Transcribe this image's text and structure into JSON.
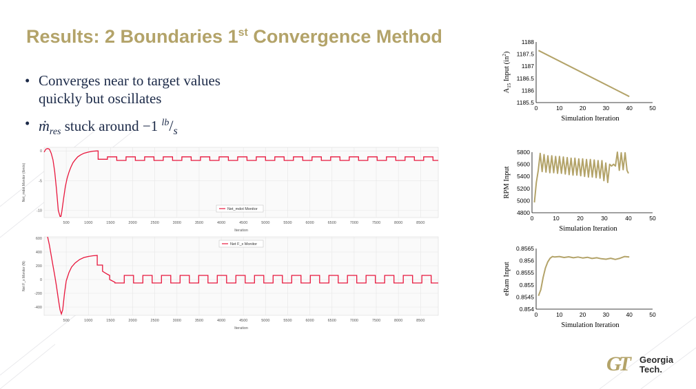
{
  "slide": {
    "title_main": "Results: 2 Boundaries 1",
    "title_sup": "st",
    "title_rest": " Convergence Method",
    "bullets": [
      {
        "line1": "Converges near to target values",
        "line2": "quickly but oscillates"
      },
      {
        "symbol": "ṁ",
        "subscript": "res",
        "text": " stuck around −1 ",
        "unit_top": "lb",
        "unit_bottom": "s"
      }
    ],
    "logo": {
      "line1": "Georgia",
      "line2": "Tech."
    },
    "colors": {
      "gold": "#B3A369",
      "navy": "#1c2a48",
      "red": "#e8163c"
    }
  },
  "chart_data": [
    {
      "type": "line",
      "ylabel": "Net_mdot Monitor (lbm/s)",
      "xlabel": "Iteration",
      "legend": "Net_mdot Monitor",
      "legend_position": "bottom-center",
      "xlim": [
        0,
        8900
      ],
      "ylim": [
        -11.2,
        0.6
      ],
      "yticks": [
        0,
        -5,
        -10
      ],
      "xticks": [
        500,
        1000,
        1500,
        2000,
        2500,
        3000,
        3500,
        4000,
        4500,
        5000,
        5500,
        6000,
        6500,
        7000,
        7500,
        8000,
        8500
      ],
      "x": [
        0,
        40,
        80,
        120,
        160,
        200,
        240,
        280,
        320,
        360,
        380,
        400,
        440,
        480,
        520,
        560,
        600,
        650,
        700,
        760,
        820,
        900,
        1000,
        1100,
        1200
      ],
      "y": [
        -0.2,
        0.3,
        0.4,
        0.3,
        -0.4,
        -1.5,
        -3.5,
        -6.5,
        -10.0,
        -11.0,
        -11.0,
        -10.2,
        -8.0,
        -6.0,
        -4.6,
        -3.6,
        -2.8,
        -2.0,
        -1.5,
        -1.0,
        -0.7,
        -0.4,
        -0.2,
        -0.05,
        0.0
      ],
      "square_wave": {
        "start": 1220,
        "end": 8900,
        "period": 420,
        "high": -1.0,
        "low": -1.6,
        "initial": -1.4
      },
      "grid": true
    },
    {
      "type": "line",
      "ylabel": "Net F_x Monitor (N)",
      "xlabel": "Iteration",
      "legend": "Net F_x Monitor",
      "legend_position": "top-center",
      "xlim": [
        0,
        8900
      ],
      "ylim": [
        -520,
        620
      ],
      "yticks": [
        600,
        400,
        200,
        0,
        -200,
        -400
      ],
      "xticks": [
        500,
        1000,
        1500,
        2000,
        2500,
        3000,
        3500,
        4000,
        4500,
        5000,
        5500,
        6000,
        6500,
        7000,
        7500,
        8000,
        8500
      ],
      "x": [
        80,
        120,
        160,
        200,
        240,
        280,
        320,
        360,
        390,
        420,
        460,
        500,
        560,
        620,
        700,
        800,
        900,
        1000,
        1100,
        1200
      ],
      "y": [
        620,
        500,
        350,
        200,
        60,
        -100,
        -280,
        -440,
        -500,
        -440,
        -200,
        -20,
        100,
        180,
        240,
        290,
        320,
        335,
        345,
        350
      ],
      "decay": [
        {
          "x": 1200,
          "y": 210
        },
        {
          "x": 1320,
          "y": 210
        },
        {
          "x": 1320,
          "y": 120
        },
        {
          "x": 1420,
          "y": 80
        },
        {
          "x": 1480,
          "y": 60
        },
        {
          "x": 1480,
          "y": 0
        },
        {
          "x": 1600,
          "y": -40
        }
      ],
      "square_wave": {
        "start": 1600,
        "end": 8900,
        "period": 420,
        "high": 60,
        "low": -50,
        "initial": -50
      },
      "grid": true
    },
    {
      "type": "line",
      "ylabel": "A₁₅ Input (in²)",
      "ylabel_main": "A",
      "ylabel_sub": "15",
      "ylabel_rest": " Input (in",
      "ylabel_sup": "2",
      "ylabel_end": ")",
      "xlabel": "Simulation Iteration",
      "xlim": [
        0,
        50
      ],
      "ylim": [
        1185.5,
        1188
      ],
      "yticks": [
        1185.5,
        1186,
        1186.5,
        1187,
        1187.5,
        1188
      ],
      "ytick_labels": [
        "1185.5",
        "1186",
        "1186.5",
        "1187",
        "1187.5",
        "1188"
      ],
      "xticks": [
        0,
        10,
        20,
        30,
        40,
        50
      ],
      "x": [
        1,
        40
      ],
      "y": [
        1187.65,
        1185.75
      ],
      "grid": false
    },
    {
      "type": "line",
      "ylabel": "RPM Input",
      "xlabel": "Simulation Iteration",
      "xlim": [
        0,
        50
      ],
      "ylim": [
        4800,
        5800
      ],
      "yticks": [
        4800,
        5000,
        5200,
        5400,
        5600,
        5800
      ],
      "ytick_labels": [
        "4800",
        "5000",
        "5200",
        "5400",
        "5600",
        "5800"
      ],
      "xticks": [
        0,
        10,
        20,
        30,
        40,
        50
      ],
      "x": [
        1,
        1.8,
        2.6,
        3.4,
        4.2,
        5,
        5.8,
        6.6,
        7.4,
        8.2,
        9,
        9.8,
        10.6,
        11.4,
        12.2,
        13,
        13.8,
        14.6,
        15.4,
        16.2,
        17,
        17.8,
        18.6,
        19.4,
        20.2,
        21,
        21.8,
        22.6,
        23.4,
        24.2,
        25,
        25.8,
        26.6,
        27.4,
        28.2,
        29,
        29.8,
        30.6,
        31.4,
        32.2,
        33,
        33.8,
        34.6,
        35.4,
        36.2,
        37,
        37.8,
        38.6,
        39.4,
        40
      ],
      "y": [
        4970,
        5300,
        5500,
        5780,
        5480,
        5760,
        5470,
        5740,
        5460,
        5740,
        5460,
        5730,
        5450,
        5730,
        5450,
        5720,
        5440,
        5710,
        5430,
        5700,
        5420,
        5700,
        5420,
        5690,
        5410,
        5690,
        5400,
        5680,
        5390,
        5680,
        5390,
        5670,
        5380,
        5660,
        5370,
        5660,
        5330,
        5620,
        5300,
        5600,
        5570,
        5600,
        5570,
        5800,
        5500,
        5790,
        5510,
        5790,
        5500,
        5450
      ],
      "grid": false
    },
    {
      "type": "line",
      "ylabel": "eRam Input",
      "xlabel": "Simulation Iteration",
      "xlim": [
        0,
        50
      ],
      "ylim": [
        0.854,
        0.8565
      ],
      "yticks": [
        0.854,
        0.8545,
        0.855,
        0.8555,
        0.856,
        0.8565
      ],
      "ytick_labels": [
        "0.854",
        "0.8545",
        "0.855",
        "0.8555",
        "0.856",
        "0.8565"
      ],
      "xticks": [
        0,
        10,
        20,
        30,
        40,
        50
      ],
      "x": [
        1,
        2,
        3,
        4,
        5,
        6,
        7,
        8,
        10,
        12,
        14,
        16,
        18,
        20,
        22,
        24,
        26,
        28,
        30,
        32,
        34,
        36,
        38,
        40
      ],
      "y": [
        0.85455,
        0.8548,
        0.8553,
        0.8557,
        0.85595,
        0.8561,
        0.85617,
        0.85615,
        0.85617,
        0.85613,
        0.85616,
        0.85612,
        0.85615,
        0.85611,
        0.85614,
        0.85609,
        0.85612,
        0.85608,
        0.85606,
        0.8561,
        0.85605,
        0.8561,
        0.85617,
        0.85615
      ],
      "grid": false
    }
  ]
}
